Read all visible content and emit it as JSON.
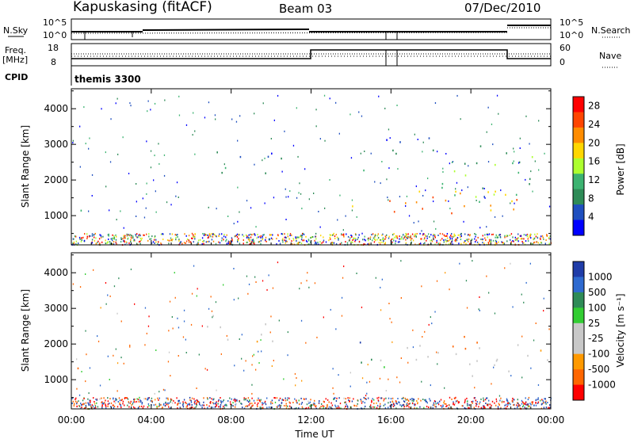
{
  "header": {
    "station": "Kapuskasing (fitACF)",
    "beam": "Beam 03",
    "date": "07/Dec/2010"
  },
  "sky_panel": {
    "left_label": "N.Sky",
    "right_label": "N.Search",
    "left_ticks": [
      "10^5",
      "10^0"
    ],
    "right_ticks": [
      "10^5",
      "10^0"
    ]
  },
  "freq_panel": {
    "left_label_line1": "Freq.",
    "left_label_line2": "[MHz]",
    "right_label": "Nave",
    "left_ticks": [
      "18",
      "8"
    ],
    "right_ticks": [
      "60",
      "0"
    ]
  },
  "cpid": {
    "label": "CPID",
    "program": "themis 3300"
  },
  "colors": {
    "power_scale": [
      "#0000ff",
      "#1f4fbf",
      "#2e8b57",
      "#3cb371",
      "#adff2f",
      "#ffd700",
      "#ff8c00",
      "#ff4500",
      "#ff0000"
    ],
    "velocity_scale": [
      "#1f3ca8",
      "#2e6ad0",
      "#2e8b57",
      "#32cd32",
      "#c8c8c8",
      "#c8c8c8",
      "#ff9900",
      "#ff6600",
      "#ff0000"
    ]
  },
  "chart_data": [
    {
      "type": "heatmap",
      "name": "power",
      "ylabel": "Slant Range [km]",
      "xlabel": "",
      "x_ticks": [
        "00:00",
        "04:00",
        "08:00",
        "12:00",
        "16:00",
        "20:00",
        "00:00"
      ],
      "x_range_hours": [
        0,
        24
      ],
      "y_ticks": [
        1000,
        2000,
        3000,
        4000
      ],
      "ylim": [
        180,
        4560
      ],
      "colorbar": {
        "label": "Power [dB]",
        "ticks": [
          "4",
          "8",
          "12",
          "16",
          "20",
          "24",
          "28"
        ],
        "range": [
          0,
          30
        ]
      },
      "echo_regions": [
        {
          "t_start": 0.0,
          "t_end": 0.7,
          "r_low": 1000,
          "r_high": 1550,
          "value": 12
        },
        {
          "t_start": 1.7,
          "t_end": 2.6,
          "r_low": 1250,
          "r_high": 1400,
          "value": 8
        },
        {
          "t_start": 6.6,
          "t_end": 10.5,
          "r_low": 2050,
          "r_high": 2900,
          "value": 6
        },
        {
          "t_start": 14.0,
          "t_end": 14.7,
          "r_low": 2000,
          "r_high": 2700,
          "value": 14
        },
        {
          "t_start": 14.0,
          "t_end": 22.5,
          "r_low": 1000,
          "r_high": 2000,
          "value": 22
        },
        {
          "t_start": 15.5,
          "t_end": 18.5,
          "r_low": 2400,
          "r_high": 3200,
          "value": 6
        },
        {
          "t_start": 18.5,
          "t_end": 24.0,
          "r_low": 1400,
          "r_high": 3000,
          "value": 10
        }
      ]
    },
    {
      "type": "heatmap",
      "name": "velocity",
      "ylabel": "Slant Range [km]",
      "xlabel": "Time UT",
      "x_ticks": [
        "00:00",
        "04:00",
        "08:00",
        "12:00",
        "16:00",
        "20:00",
        "00:00"
      ],
      "x_range_hours": [
        0,
        24
      ],
      "y_ticks": [
        1000,
        2000,
        3000,
        4000
      ],
      "ylim": [
        180,
        4560
      ],
      "colorbar": {
        "label": "Velocity [m s⁻¹]",
        "ticks": [
          "1000",
          "500",
          "100",
          "25",
          "-25",
          "-100",
          "-500",
          "-1000"
        ]
      },
      "echo_regions": [
        {
          "t_start": 0.0,
          "t_end": 0.7,
          "r_low": 1100,
          "r_high": 1450,
          "value": -200
        },
        {
          "t_start": 1.7,
          "t_end": 2.6,
          "r_low": 1250,
          "r_high": 1400,
          "value": -200
        },
        {
          "t_start": 6.6,
          "t_end": 10.5,
          "r_low": 2050,
          "r_high": 2900,
          "value": 0
        },
        {
          "t_start": 14.0,
          "t_end": 14.7,
          "r_low": 2050,
          "r_high": 2700,
          "value": 800
        },
        {
          "t_start": 14.0,
          "t_end": 15.0,
          "r_low": 1100,
          "r_high": 1700,
          "value": 120
        },
        {
          "t_start": 15.0,
          "t_end": 24.0,
          "r_low": 1100,
          "r_high": 2000,
          "value": 0
        },
        {
          "t_start": 19.0,
          "t_end": 22.0,
          "r_low": 1800,
          "r_high": 2300,
          "value": -250
        }
      ]
    }
  ]
}
